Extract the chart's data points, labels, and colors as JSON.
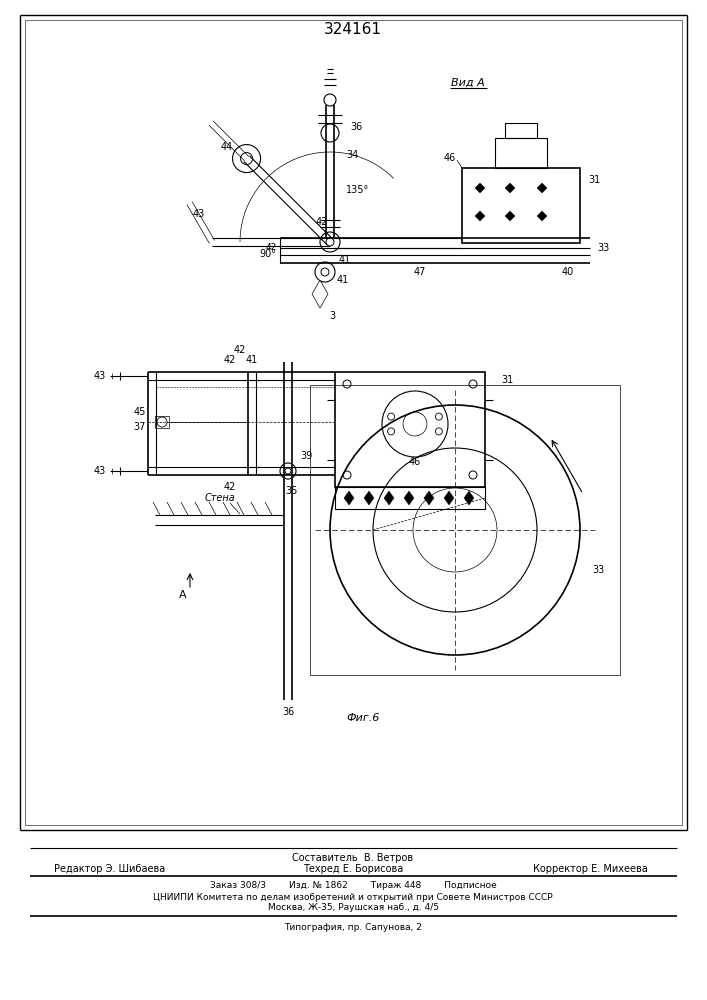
{
  "title": "324161",
  "bg_color": "#ffffff",
  "view_a": "Вид А",
  "fig6": "Фиг.6",
  "stena": "Стена",
  "footer_sostavitel": "Составитель  В. Ветров",
  "footer_redaktor": "Редактор Э. Шибаева",
  "footer_tehred": "Техред Е. Борисова",
  "footer_korrektor": "Корректор Е. Михеева",
  "footer_zakaz": "Заказ 308/3        Изд. № 1862        Тираж 448        Подписное",
  "footer_cniipи": "ЦНИИПИ Комитета по делам изобретений и открытий при Совете Министров СССР",
  "footer_moskva": "Москва, Ж-35, Раушская наб., д. 4/5",
  "footer_tipograf": "Типография, пр. Сапунова, 2",
  "top_view_notes": "Top diagram: Вид А, pivot at ~(330,240) in top-down coords. Rail y~245. Box x~460-580, y~170-245.",
  "bot_view_notes": "Bottom diagram: large disk cx~455, cy~530. Box x~330-490, y~370-480. Shaft x~285."
}
